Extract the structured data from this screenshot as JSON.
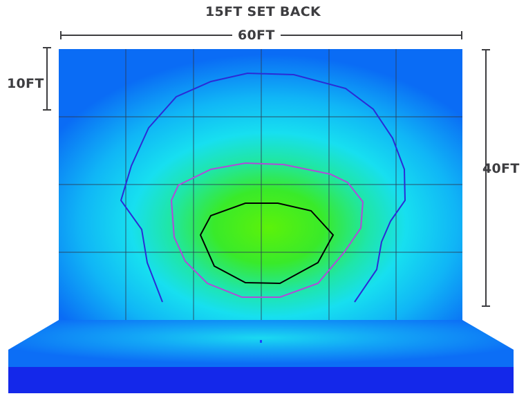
{
  "title": "15FT SET BACK",
  "dimensions": {
    "width": "60FT",
    "height": "40FT",
    "grid_cell": "10FT"
  },
  "colors": {
    "wall_edge": "#0a6cf5",
    "wall_mid": "#19d8f2",
    "hot_center": "#5cf20a",
    "floor_base": "#1428ea",
    "contour_outer": "#2b2bd6",
    "contour_middle": "#b04ad8",
    "contour_inner": "#000000",
    "dimension_lines": "#3d3d40"
  }
}
